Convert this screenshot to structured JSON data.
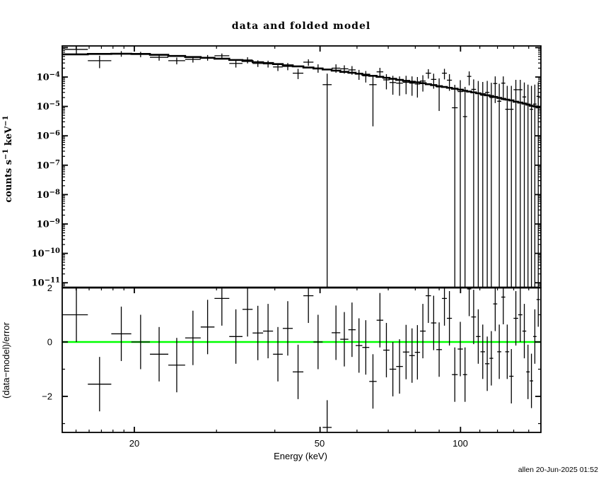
{
  "annotation": {
    "text": "allen 20-Jun-2025 01:52"
  },
  "colors": {
    "background": "#ffffff",
    "foreground": "#000000",
    "zero_line": "#00ff00"
  },
  "chart_data": [
    {
      "type": "scatter",
      "name": "spectrum",
      "title": "data and folded model",
      "ylabel_parts": [
        "counts s",
        "−1",
        " keV",
        "−1"
      ],
      "xscale": "log",
      "yscale": "log",
      "xlim": [
        14.0,
        148.7
      ],
      "ylim": [
        6.9e-12,
        0.00115
      ],
      "ytick_exponents": [
        "−4",
        "−5",
        "−6",
        "−7",
        "−8",
        "−9",
        "−10",
        "−11"
      ],
      "xticks": {
        "major": [
          20,
          50,
          100
        ],
        "minor": [
          15,
          16,
          17,
          18,
          19,
          30,
          40,
          60,
          70,
          80,
          90,
          110,
          120,
          130,
          140
        ]
      },
      "legend": "none",
      "grid": false,
      "series_note": "columns: [E_lo_keV, E_hi_keV, value, errbar_top, errbar_bottom_or_null_means_to_zero, model_value]",
      "points": [
        [
          14.2,
          15.9,
          0.00087,
          0.0013,
          0.0006,
          0.00059
        ],
        [
          15.9,
          17.85,
          0.00036,
          0.00053,
          0.0002,
          0.00061
        ],
        [
          17.85,
          19.7,
          0.00062,
          0.00076,
          0.00049,
          0.00062
        ],
        [
          19.7,
          21.6,
          0.00059,
          0.00072,
          0.00047,
          0.00061
        ],
        [
          21.6,
          23.65,
          0.00047,
          0.00059,
          0.00036,
          0.00057
        ],
        [
          23.65,
          25.7,
          0.00036,
          0.00046,
          0.00027,
          0.00052
        ],
        [
          25.7,
          27.75,
          0.0004,
          0.0005,
          0.00031,
          0.00048
        ],
        [
          27.75,
          29.7,
          0.00046,
          0.00056,
          0.00036,
          0.00045
        ],
        [
          29.7,
          31.95,
          0.00053,
          0.00063,
          0.00043,
          0.00042
        ],
        [
          31.95,
          34.1,
          0.00029,
          0.00037,
          0.00021,
          0.00038
        ],
        [
          34.1,
          35.85,
          0.00038,
          0.00047,
          0.00029,
          0.00035
        ],
        [
          35.85,
          37.75,
          0.00029,
          0.00037,
          0.00022,
          0.00032
        ],
        [
          37.75,
          39.65,
          0.00028,
          0.00036,
          0.00021,
          0.0003
        ],
        [
          39.65,
          41.6,
          0.00022,
          0.00029,
          0.00016,
          0.000275
        ],
        [
          41.6,
          43.7,
          0.00023,
          0.0003,
          0.00017,
          0.00025
        ],
        [
          43.7,
          46.05,
          0.000135,
          0.00019,
          8.5e-05,
          0.00023
        ],
        [
          46.05,
          48.4,
          0.00032,
          0.0004,
          0.00024,
          0.00021
        ],
        [
          48.4,
          50.65,
          0.0002,
          0.00027,
          0.00014,
          0.000195
        ],
        [
          50.65,
          52.95,
          5.5e-05,
          0.00013,
          null,
          0.00018
        ],
        [
          52.95,
          55.25,
          0.0002,
          0.00027,
          0.00014,
          0.000165
        ],
        [
          55.25,
          57.5,
          0.00019,
          0.00025,
          0.00013,
          0.00015
        ],
        [
          57.5,
          59.6,
          0.000175,
          0.000235,
          0.00012,
          0.00014
        ],
        [
          59.6,
          61.6,
          0.000125,
          0.000175,
          8e-05,
          0.00013
        ],
        [
          61.6,
          63.75,
          0.00011,
          0.00016,
          6.5e-05,
          0.00012
        ],
        [
          63.75,
          66.1,
          5.5e-05,
          0.00011,
          2.1e-06,
          0.00011
        ],
        [
          66.1,
          68.3,
          0.00015,
          0.000205,
          9.7e-05,
          0.000102
        ],
        [
          68.3,
          70.45,
          8e-05,
          0.000125,
          3.8e-05,
          9.4e-05
        ],
        [
          70.45,
          72.8,
          6.5e-05,
          0.00011,
          2.5e-05,
          8.7e-05
        ],
        [
          72.8,
          75.25,
          6.2e-05,
          0.000105,
          2.3e-05,
          8e-05
        ],
        [
          75.25,
          77.65,
          6.6e-05,
          0.00011,
          2.6e-05,
          7.4e-05
        ],
        [
          77.65,
          79.8,
          6.2e-05,
          0.000105,
          2.3e-05,
          6.9e-05
        ],
        [
          79.8,
          81.9,
          5.8e-05,
          0.0001,
          2e-05,
          6.6e-05
        ],
        [
          81.9,
          84.2,
          7.3e-05,
          0.000115,
          3.2e-05,
          6.2e-05
        ],
        [
          84.2,
          86.45,
          0.000135,
          0.000185,
          8.8e-05,
          5.7e-05
        ],
        [
          86.45,
          88.75,
          8.3e-05,
          0.00013,
          4e-05,
          5.3e-05
        ],
        [
          88.75,
          91.25,
          4.6e-05,
          9e-05,
          7e-06,
          4.9e-05
        ],
        [
          91.25,
          93.5,
          0.000135,
          0.00019,
          8.3e-05,
          4.6e-05
        ],
        [
          93.5,
          95.85,
          7.8e-05,
          0.000125,
          3.4e-05,
          4.3e-05
        ],
        [
          95.85,
          98.6,
          9e-06,
          5.4e-05,
          null,
          4e-05
        ],
        [
          98.6,
          101.2,
          3.2e-05,
          7.8e-05,
          null,
          3.7e-05
        ],
        [
          101.2,
          103.3,
          4.5e-06,
          4.6e-05,
          null,
          3.4e-05
        ],
        [
          103.3,
          105.45,
          0.000105,
          0.000155,
          5.2e-05,
          3.2e-05
        ],
        [
          105.45,
          107.95,
          3.8e-05,
          8.3e-05,
          null,
          3e-05
        ],
        [
          107.95,
          110.35,
          2.8e-05,
          7.3e-05,
          null,
          2.8e-05
        ],
        [
          110.35,
          112.85,
          2.4e-05,
          6.8e-05,
          null,
          2.6e-05
        ],
        [
          112.85,
          115.35,
          3e-05,
          7.4e-05,
          null,
          2.4e-05
        ],
        [
          115.35,
          117.5,
          2e-05,
          6.4e-05,
          null,
          2.25e-05
        ],
        [
          117.5,
          119.85,
          6e-05,
          0.000105,
          1.3e-05,
          2.1e-05
        ],
        [
          119.85,
          122.3,
          1.5e-05,
          5.9e-05,
          null,
          1.95e-05
        ],
        [
          122.3,
          124.7,
          6.2e-05,
          0.000105,
          1.6e-05,
          1.8e-05
        ],
        [
          124.7,
          127.15,
          8e-06,
          5e-05,
          null,
          1.7e-05
        ],
        [
          127.15,
          129.9,
          8e-06,
          5e-05,
          null,
          1.6e-05
        ],
        [
          129.9,
          132.9,
          3.7e-05,
          8e-05,
          null,
          1.45e-05
        ],
        [
          132.9,
          135.7,
          3.7e-05,
          8e-05,
          null,
          1.35e-05
        ],
        [
          135.7,
          138.3,
          2.1e-05,
          6.5e-05,
          null,
          1.25e-05
        ],
        [
          138.3,
          140.7,
          1.2e-05,
          5.5e-05,
          null,
          1.15e-05
        ],
        [
          140.7,
          143.1,
          8e-06,
          5e-05,
          null,
          1.05e-05
        ],
        [
          143.1,
          145.5,
          1.2e-05,
          5.5e-05,
          null,
          1e-05
        ],
        [
          145.5,
          148.0,
          2.2e-05,
          6.6e-05,
          null,
          9.3e-06
        ]
      ]
    },
    {
      "type": "scatter",
      "name": "residuals",
      "ylabel": "(data−model)/error",
      "xlabel": "Energy (keV)",
      "xscale": "log",
      "xlim": [
        14.0,
        148.7
      ],
      "ylim": [
        -3.3,
        1.96
      ],
      "xtick_labels": [
        "20",
        "50",
        "100"
      ],
      "ytick_labels": [
        "2",
        "0",
        "−2"
      ],
      "ytick_values": [
        2,
        0,
        -2
      ],
      "ytick_minor_values": [
        1,
        -1,
        -3
      ],
      "error_bar_halfwidth": 1,
      "zero_line": 0,
      "series_note": "columns: [E_lo_keV, E_hi_keV, (data-model)/error]",
      "points": [
        [
          14.2,
          15.9,
          1.0
        ],
        [
          15.9,
          17.85,
          -1.55
        ],
        [
          17.85,
          19.7,
          0.3
        ],
        [
          19.7,
          21.6,
          0.0
        ],
        [
          21.6,
          23.65,
          -0.45
        ],
        [
          23.65,
          25.7,
          -0.85
        ],
        [
          25.7,
          27.75,
          0.15
        ],
        [
          27.75,
          29.7,
          0.55
        ],
        [
          29.7,
          31.95,
          1.6
        ],
        [
          31.95,
          34.1,
          0.2
        ],
        [
          34.1,
          35.85,
          1.2
        ],
        [
          35.85,
          37.75,
          0.33
        ],
        [
          37.75,
          39.65,
          0.4
        ],
        [
          39.65,
          41.6,
          -0.45
        ],
        [
          41.6,
          43.7,
          0.5
        ],
        [
          43.7,
          46.05,
          -1.1
        ],
        [
          46.05,
          48.4,
          1.7
        ],
        [
          48.4,
          50.65,
          0.0
        ],
        [
          50.65,
          52.95,
          -3.14
        ],
        [
          52.95,
          55.25,
          0.34
        ],
        [
          55.25,
          57.5,
          0.1
        ],
        [
          57.5,
          59.6,
          0.45
        ],
        [
          59.6,
          61.6,
          -0.13
        ],
        [
          61.6,
          63.75,
          -0.2
        ],
        [
          63.75,
          66.1,
          -1.45
        ],
        [
          66.1,
          68.3,
          0.8
        ],
        [
          68.3,
          70.45,
          -0.3
        ],
        [
          70.45,
          72.8,
          -1.0
        ],
        [
          72.8,
          75.25,
          -0.9
        ],
        [
          75.25,
          77.65,
          -0.37
        ],
        [
          77.65,
          79.8,
          -0.5
        ],
        [
          79.8,
          81.9,
          -0.38
        ],
        [
          81.9,
          84.2,
          0.4
        ],
        [
          84.2,
          86.45,
          1.7
        ],
        [
          86.45,
          88.75,
          0.7
        ],
        [
          88.75,
          91.25,
          -0.28
        ],
        [
          91.25,
          93.5,
          1.6
        ],
        [
          93.5,
          95.85,
          0.87
        ],
        [
          95.85,
          98.6,
          -1.2
        ],
        [
          98.6,
          101.2,
          -0.26
        ],
        [
          101.2,
          103.3,
          -1.2
        ],
        [
          103.3,
          105.45,
          1.95
        ],
        [
          105.45,
          107.95,
          0.92
        ],
        [
          107.95,
          110.35,
          0.2
        ],
        [
          110.35,
          112.85,
          -0.36
        ],
        [
          112.85,
          115.35,
          -0.8
        ],
        [
          115.35,
          117.5,
          -0.6
        ],
        [
          117.5,
          119.85,
          1.4
        ],
        [
          119.85,
          122.3,
          -0.36
        ],
        [
          122.3,
          124.7,
          1.65
        ],
        [
          124.7,
          127.15,
          -0.36
        ],
        [
          127.15,
          129.9,
          -1.26
        ],
        [
          129.9,
          132.9,
          0.87
        ],
        [
          132.9,
          135.7,
          1.0
        ],
        [
          135.7,
          138.3,
          0.4
        ],
        [
          138.3,
          140.7,
          -1.1
        ],
        [
          140.7,
          143.1,
          -1.43
        ],
        [
          143.1,
          145.5,
          0.2
        ],
        [
          145.5,
          148.0,
          1.56
        ]
      ]
    }
  ]
}
